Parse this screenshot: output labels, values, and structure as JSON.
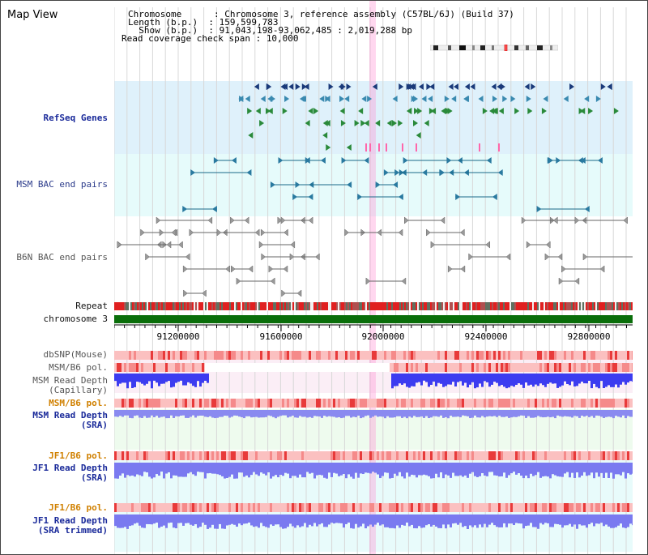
{
  "header": {
    "title": "Map View",
    "chromosome_label": "Chromosome      : ",
    "chromosome_value": "Chromosome 3, reference assembly (C57BL/6J) (Build 37)",
    "length_label": "Length (b.p.)  : ",
    "length_value": "159,599,783",
    "show_label": "  Show (b.p.)  : ",
    "show_value": "91,043,198-93,062,485 : 2,019,288 bp",
    "coverage_label": "Read coverage check span : ",
    "coverage_value": "10,000"
  },
  "tracks": {
    "refseq": "RefSeq Genes",
    "msm_bac": "MSM BAC end pairs",
    "b6n_bac": "B6N BAC end pairs",
    "repeat": "Repeat",
    "chromosome": "chromosome 3",
    "dbsnp": "dbSNP(Mouse)",
    "msm_b6_pol_1": "MSM/B6 pol.",
    "msm_read_depth_cap_1": "MSM Read Depth",
    "msm_read_depth_cap_2": "(Capillary)",
    "msm_b6_pol_2": "MSM/B6 pol.",
    "msm_read_depth_sra_1": "MSM Read Depth",
    "msm_read_depth_sra_2": "(SRA)",
    "jf1_b6_pol_1": "JF1/B6 pol.",
    "jf1_read_depth_sra_1": "JF1 Read Depth",
    "jf1_read_depth_sra_2": "(SRA)",
    "jf1_b6_pol_2": "JF1/B6 pol.",
    "jf1_read_depth_trim_1": "JF1 Read Depth",
    "jf1_read_depth_trim_2": "(SRA trimmed)"
  },
  "axis": {
    "ticks": [
      "91200000",
      "91600000",
      "92000000",
      "92400000",
      "92800000"
    ]
  },
  "colors": {
    "refseq_bg": "#dff1fb",
    "bac_bg": "#e6fbfb",
    "highlight": "#ffb4e0",
    "chromosome_bar": "#0a6e0a",
    "depth_blue": "#3c3cf0"
  }
}
